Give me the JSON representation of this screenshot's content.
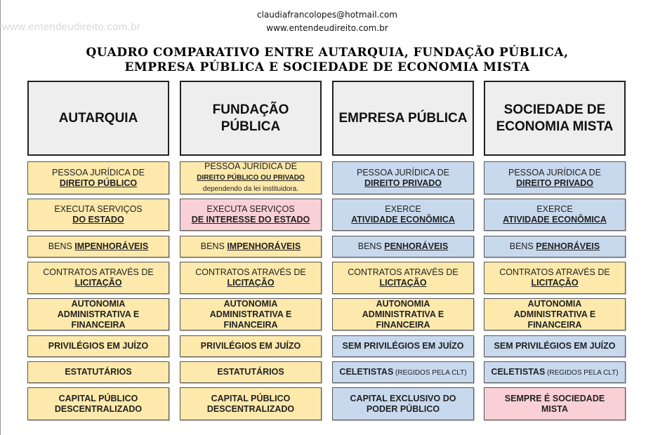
{
  "watermark": "www.entendeudireito.com.br",
  "contact": {
    "email": "claudiafrancolopes@hotmail.com",
    "site": "www.entendeudireito.com.br"
  },
  "title": {
    "line1": "QUADRO COMPARATIVO ENTRE AUTARQUIA, FUNDAÇÃO PÚBLICA,",
    "line2": "EMPRESA PÚBLICA E SOCIEDADE DE ECONOMIA MISTA"
  },
  "colors": {
    "yellow": "#fde9ab",
    "blue": "#c8d9ee",
    "pink": "#f9d0d6",
    "header": "#eeeeee"
  },
  "columns": [
    {
      "header": [
        "AUTARQUIA"
      ],
      "cells": [
        {
          "color": "yellow",
          "lines": [
            [
              {
                "t": "PESSOA JURÍDICA DE"
              }
            ],
            [
              {
                "t": "DIREITO PÚBLICO",
                "s": "bu"
              }
            ]
          ]
        },
        {
          "color": "yellow",
          "lines": [
            [
              {
                "t": "EXECUTA SERVIÇOS"
              }
            ],
            [
              {
                "t": "DO ESTADO",
                "s": "bu"
              }
            ]
          ]
        },
        {
          "color": "yellow",
          "lines": [
            [
              {
                "t": "BENS "
              },
              {
                "t": "IMPENHORÁVEIS",
                "s": "bu"
              }
            ]
          ]
        },
        {
          "color": "yellow",
          "lines": [
            [
              {
                "t": "CONTRATOS ATRAVÉS DE"
              }
            ],
            [
              {
                "t": "LICITAÇÃO",
                "s": "bu"
              }
            ]
          ]
        },
        {
          "color": "yellow",
          "lines": [
            [
              {
                "t": "AUTONOMIA",
                "s": "bo"
              }
            ],
            [
              {
                "t": "ADMINISTRATIVA E",
                "s": "bo"
              }
            ],
            [
              {
                "t": "FINANCEIRA",
                "s": "bo"
              }
            ]
          ]
        },
        {
          "color": "yellow",
          "lines": [
            [
              {
                "t": "PRIVILÉGIOS EM JUÍZO",
                "s": "bo"
              }
            ]
          ]
        },
        {
          "color": "yellow",
          "lines": [
            [
              {
                "t": "ESTATUTÁRIOS",
                "s": "bo"
              }
            ]
          ]
        },
        {
          "color": "yellow",
          "lines": [
            [
              {
                "t": "CAPITAL PÚBLICO",
                "s": "bo"
              }
            ],
            [
              {
                "t": "DESCENTRALIZADO",
                "s": "bo"
              }
            ]
          ]
        }
      ]
    },
    {
      "header": [
        "FUNDAÇÃO",
        "PÚBLICA"
      ],
      "cells": [
        {
          "color": "yellow",
          "lines": [
            [
              {
                "t": "PESSOA JURÍDICA DE"
              }
            ],
            [
              {
                "t": "DIREITO PÚBLICO OU PRIVADO",
                "s": "bu sm"
              }
            ],
            [
              {
                "t": "dependendo da lei instituidora.",
                "s": "sm"
              }
            ]
          ]
        },
        {
          "color": "pink",
          "lines": [
            [
              {
                "t": "EXECUTA SERVIÇOS"
              }
            ],
            [
              {
                "t": "DE INTERESSE DO ESTADO",
                "s": "bu"
              }
            ]
          ]
        },
        {
          "color": "yellow",
          "lines": [
            [
              {
                "t": "BENS "
              },
              {
                "t": "IMPENHORÁVEIS",
                "s": "bu"
              }
            ]
          ]
        },
        {
          "color": "yellow",
          "lines": [
            [
              {
                "t": "CONTRATOS ATRAVÉS DE"
              }
            ],
            [
              {
                "t": "LICITAÇÃO",
                "s": "bu"
              }
            ]
          ]
        },
        {
          "color": "yellow",
          "lines": [
            [
              {
                "t": "AUTONOMIA",
                "s": "bo"
              }
            ],
            [
              {
                "t": "ADMINISTRATIVA E",
                "s": "bo"
              }
            ],
            [
              {
                "t": "FINANCEIRA",
                "s": "bo"
              }
            ]
          ]
        },
        {
          "color": "yellow",
          "lines": [
            [
              {
                "t": "PRIVILÉGIOS EM JUÍZO",
                "s": "bo"
              }
            ]
          ]
        },
        {
          "color": "yellow",
          "lines": [
            [
              {
                "t": "ESTATUTÁRIOS",
                "s": "bo"
              }
            ]
          ]
        },
        {
          "color": "yellow",
          "lines": [
            [
              {
                "t": "CAPITAL PÚBLICO",
                "s": "bo"
              }
            ],
            [
              {
                "t": "DESCENTRALIZADO",
                "s": "bo"
              }
            ]
          ]
        }
      ]
    },
    {
      "header": [
        "EMPRESA PÚBLICA"
      ],
      "cells": [
        {
          "color": "blue",
          "lines": [
            [
              {
                "t": "PESSOA JURÍDICA DE"
              }
            ],
            [
              {
                "t": "DIREITO PRIVADO",
                "s": "bu"
              }
            ]
          ]
        },
        {
          "color": "blue",
          "lines": [
            [
              {
                "t": "EXERCE"
              }
            ],
            [
              {
                "t": "ATIVIDADE ECONÔMICA",
                "s": "bu"
              }
            ]
          ]
        },
        {
          "color": "blue",
          "lines": [
            [
              {
                "t": "BENS "
              },
              {
                "t": "PENHORÁVEIS",
                "s": "bu"
              }
            ]
          ]
        },
        {
          "color": "yellow",
          "lines": [
            [
              {
                "t": "CONTRATOS ATRAVÉS DE"
              }
            ],
            [
              {
                "t": "LICITAÇÃO",
                "s": "bu"
              }
            ]
          ]
        },
        {
          "color": "yellow",
          "lines": [
            [
              {
                "t": "AUTONOMIA",
                "s": "bo"
              }
            ],
            [
              {
                "t": "ADMINISTRATIVA E",
                "s": "bo"
              }
            ],
            [
              {
                "t": "FINANCEIRA",
                "s": "bo"
              }
            ]
          ]
        },
        {
          "color": "blue",
          "lines": [
            [
              {
                "t": "SEM PRIVILÉGIOS EM JUÍZO",
                "s": "bo"
              }
            ]
          ]
        },
        {
          "color": "blue",
          "lines": [
            [
              {
                "t": "CELETISTAS",
                "s": "bo"
              },
              {
                "t": " (REGIDOS PELA CLT)",
                "s": "sm"
              }
            ]
          ]
        },
        {
          "color": "blue",
          "lines": [
            [
              {
                "t": "CAPITAL EXCLUSIVO DO",
                "s": "bo"
              }
            ],
            [
              {
                "t": "PODER PÚBLICO",
                "s": "bo"
              }
            ]
          ]
        }
      ]
    },
    {
      "header": [
        "SOCIEDADE DE",
        "ECONOMIA MISTA"
      ],
      "cells": [
        {
          "color": "blue",
          "lines": [
            [
              {
                "t": "PESSOA JURÍDICA DE"
              }
            ],
            [
              {
                "t": "DIREITO PRIVADO",
                "s": "bu"
              }
            ]
          ]
        },
        {
          "color": "blue",
          "lines": [
            [
              {
                "t": "EXERCE"
              }
            ],
            [
              {
                "t": "ATIVIDADE ECONÔMICA",
                "s": "bu"
              }
            ]
          ]
        },
        {
          "color": "blue",
          "lines": [
            [
              {
                "t": "BENS "
              },
              {
                "t": "PENHORÁVEIS",
                "s": "bu"
              }
            ]
          ]
        },
        {
          "color": "yellow",
          "lines": [
            [
              {
                "t": "CONTRATOS ATRAVÉS DE"
              }
            ],
            [
              {
                "t": "LICITAÇÃO",
                "s": "bu"
              }
            ]
          ]
        },
        {
          "color": "yellow",
          "lines": [
            [
              {
                "t": "AUTONOMIA",
                "s": "bo"
              }
            ],
            [
              {
                "t": "ADMINISTRATIVA E",
                "s": "bo"
              }
            ],
            [
              {
                "t": "FINANCEIRA",
                "s": "bo"
              }
            ]
          ]
        },
        {
          "color": "blue",
          "lines": [
            [
              {
                "t": "SEM PRIVILÉGIOS EM JUÍZO",
                "s": "bo"
              }
            ]
          ]
        },
        {
          "color": "blue",
          "lines": [
            [
              {
                "t": "CELETISTAS",
                "s": "bo"
              },
              {
                "t": " (REGIDOS PELA CLT)",
                "s": "sm"
              }
            ]
          ]
        },
        {
          "color": "pink",
          "lines": [
            [
              {
                "t": "SEMPRE É SOCIEDADE",
                "s": "bo"
              }
            ],
            [
              {
                "t": "MISTA",
                "s": "bo"
              }
            ]
          ]
        }
      ]
    }
  ]
}
